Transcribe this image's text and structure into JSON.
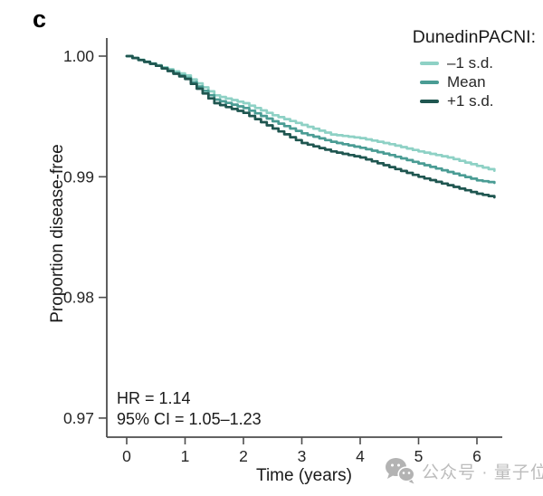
{
  "figure": {
    "panel_label": "c",
    "watermark_text": "公众号 · 量子位",
    "watermark_color": "#bcbcbc"
  },
  "legend": {
    "title": "DunedinPACNI:",
    "items": [
      {
        "label": "–1 s.d.",
        "color": "#8ed1c5"
      },
      {
        "label": "Mean",
        "color": "#4a9c94"
      },
      {
        "label": "+1 s.d.",
        "color": "#1f5650"
      }
    ]
  },
  "annotation": {
    "line1": "HR = 1.14",
    "line2": "95% CI = 1.05–1.23"
  },
  "chart_data": {
    "type": "line",
    "subtype": "kaplan-meier-survival",
    "legend_title": "DunedinPACNI:",
    "xlabel": "Time (years)",
    "ylabel": "Proportion disease-free",
    "xlim": [
      -0.15,
      6.45
    ],
    "ylim": [
      0.9685,
      1.0005
    ],
    "grid": false,
    "legend_position": "top-right",
    "x_tick_values": [
      0,
      1,
      2,
      3,
      4,
      5,
      6
    ],
    "x_tick_labels": [
      "0",
      "1",
      "2",
      "3",
      "4",
      "5",
      "6"
    ],
    "y_tick_values": [
      1.0,
      0.99,
      0.98,
      0.97
    ],
    "y_tick_labels": [
      "1.00",
      "0.99",
      "0.98",
      "0.97"
    ],
    "axis_color": "#4d4d4d",
    "x": [
      0,
      0.5,
      1.0,
      1.5,
      2.0,
      2.5,
      3.0,
      3.5,
      4.0,
      4.5,
      5.0,
      5.5,
      6.0,
      6.3
    ],
    "series": [
      {
        "name": "–1 s.d.",
        "color": "#8ed1c5",
        "values": [
          1.0,
          0.99925,
          0.9984,
          0.99675,
          0.9961,
          0.9951,
          0.9943,
          0.9935,
          0.9932,
          0.9927,
          0.9921,
          0.9916,
          0.9909,
          0.9905
        ]
      },
      {
        "name": "Mean",
        "color": "#4a9c94",
        "values": [
          1.0,
          0.9992,
          0.9982,
          0.9964,
          0.9957,
          0.9946,
          0.9936,
          0.9929,
          0.9924,
          0.9918,
          0.9911,
          0.9904,
          0.9897,
          0.9895
        ]
      },
      {
        "name": "+1 s.d.",
        "color": "#1f5650",
        "values": [
          1.0,
          0.9992,
          0.9981,
          0.9961,
          0.9953,
          0.994,
          0.9928,
          0.9921,
          0.9916,
          0.9908,
          0.99,
          0.9893,
          0.9886,
          0.9883
        ]
      }
    ],
    "annotations": [
      "HR = 1.14",
      "95% CI = 1.05–1.23"
    ]
  }
}
